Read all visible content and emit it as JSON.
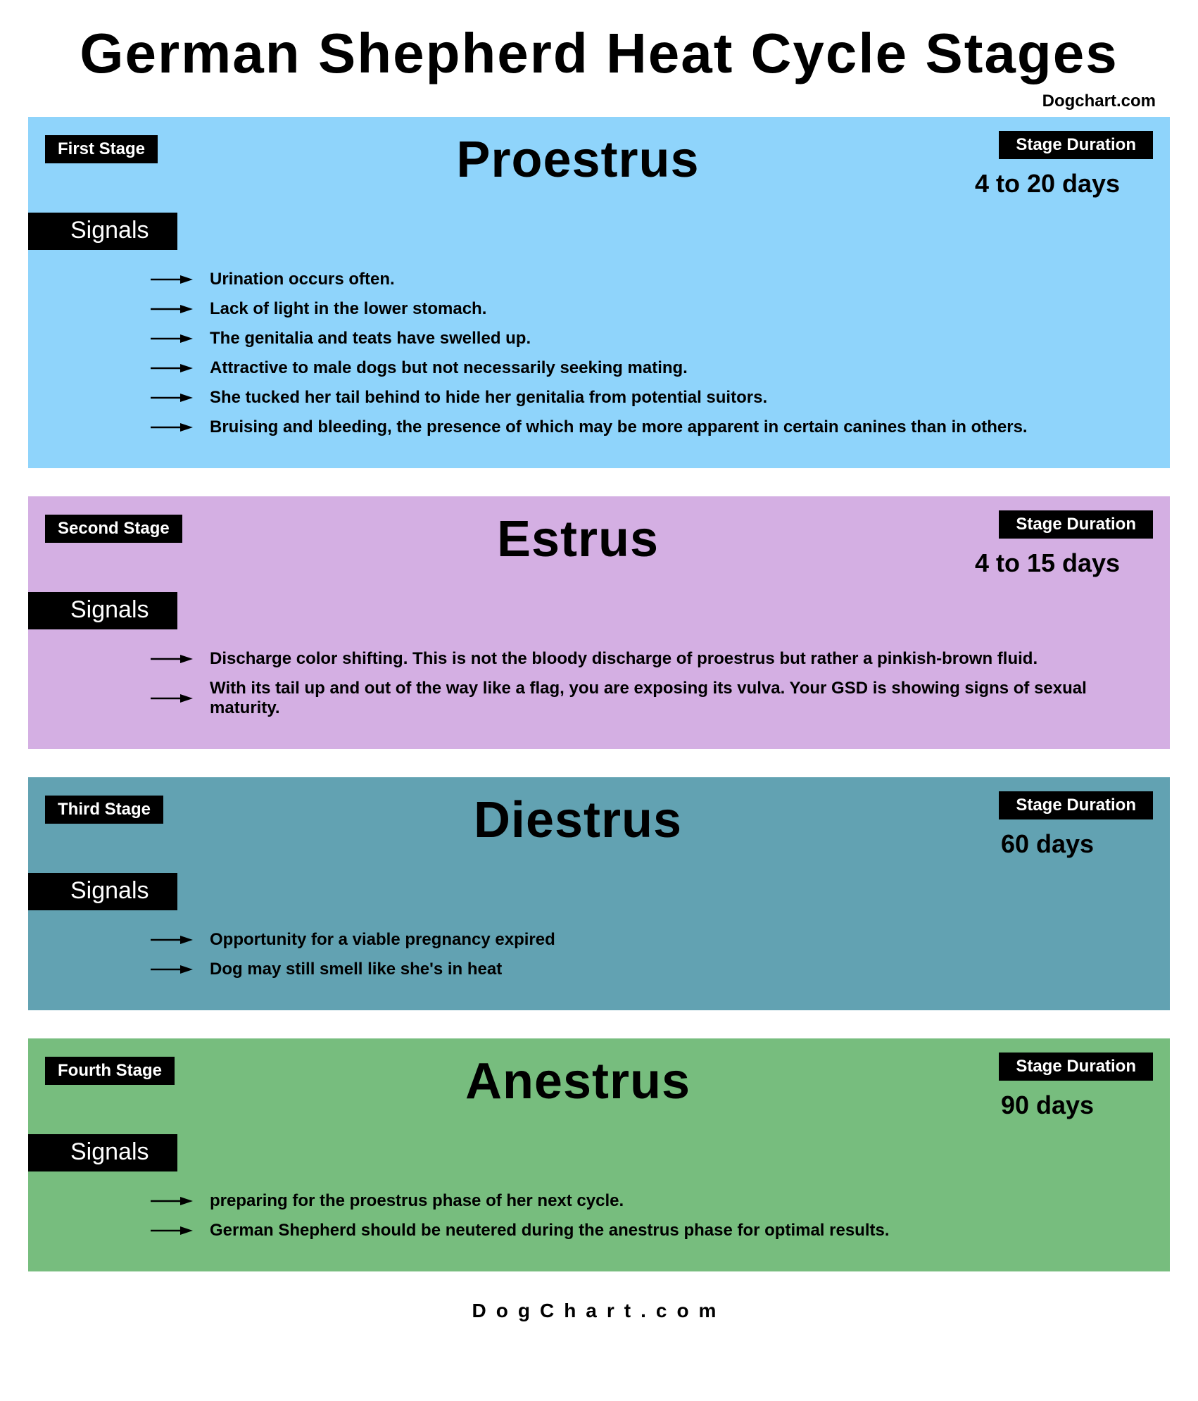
{
  "title": "German Shepherd Heat Cycle Stages",
  "source_top": "Dogchart.com",
  "footer_brand": "DogChart.com",
  "signals_label": "Signals",
  "duration_label": "Stage Duration",
  "stages": [
    {
      "order_label": "First Stage",
      "name": "Proestrus",
      "duration": "4 to 20 days",
      "bg_color": "#8fd4fb",
      "signals": [
        "Urination occurs often.",
        "Lack of light in the lower stomach.",
        "The genitalia and teats have swelled up.",
        "Attractive to male dogs but not necessarily seeking mating.",
        "She tucked her tail behind to hide her genitalia from potential suitors.",
        "Bruising and bleeding, the presence of which may be more apparent in certain canines than in others."
      ]
    },
    {
      "order_label": "Second Stage",
      "name": "Estrus",
      "duration": "4 to 15 days",
      "bg_color": "#d4afe3",
      "signals": [
        "Discharge color shifting. This is not the bloody discharge of proestrus but rather a pinkish-brown fluid.",
        "With its tail up and out of the way like a flag, you are exposing its vulva. Your GSD is showing signs of sexual maturity."
      ]
    },
    {
      "order_label": "Third Stage",
      "name": "Diestrus",
      "duration": "60 days",
      "bg_color": "#62a2b2",
      "signals": [
        "Opportunity for a viable pregnancy expired",
        "Dog may still smell like she's in heat"
      ]
    },
    {
      "order_label": "Fourth Stage",
      "name": "Anestrus",
      "duration": "90 days",
      "bg_color": "#77bd7e",
      "signals": [
        "preparing for the proestrus phase of her next cycle.",
        "German Shepherd should be neutered during the anestrus phase for optimal results."
      ]
    }
  ]
}
